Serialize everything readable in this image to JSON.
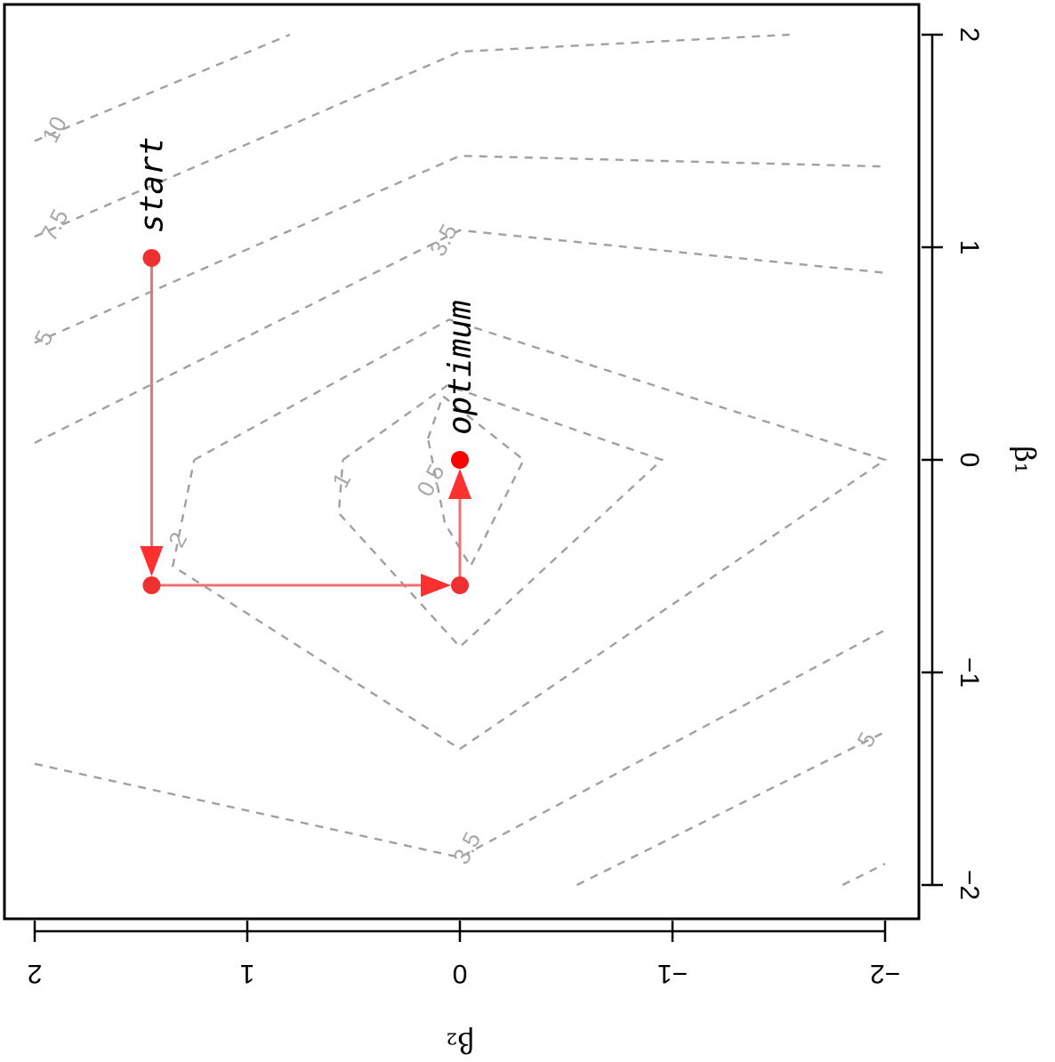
{
  "chart_data": {
    "type": "contour",
    "orientation": "rotated-90-clockwise",
    "xlabel": "β₂",
    "ylabel": "β₁",
    "xlim": [
      2,
      -2
    ],
    "ylim": [
      -2,
      2
    ],
    "x_ticks": [
      {
        "value": 2,
        "label": "2"
      },
      {
        "value": 1,
        "label": "1"
      },
      {
        "value": 0,
        "label": "0"
      },
      {
        "value": -1,
        "label": "−1"
      },
      {
        "value": -2,
        "label": "−2"
      }
    ],
    "y_ticks": [
      {
        "value": 2,
        "label": "2"
      },
      {
        "value": 1,
        "label": "1"
      },
      {
        "value": 0,
        "label": "0"
      },
      {
        "value": -1,
        "label": "−1"
      },
      {
        "value": -2,
        "label": "−2"
      }
    ],
    "grid": false,
    "contour_color": "#a0a0a0",
    "contours": [
      {
        "level": "0.5",
        "label": "0.5",
        "points": [
          [
            0.15,
            0.1
          ],
          [
            0.08,
            0.3
          ],
          [
            -0.3,
            0.0
          ],
          [
            -0.05,
            -0.5
          ],
          [
            0.07,
            -0.3
          ],
          [
            0.15,
            0.1
          ]
        ]
      },
      {
        "level": "1",
        "label": "1",
        "points": [
          [
            0.55,
            0.0
          ],
          [
            0.06,
            0.35
          ],
          [
            -0.95,
            0.0
          ],
          [
            0.0,
            -0.88
          ],
          [
            0.57,
            -0.25
          ],
          [
            0.55,
            0.0
          ]
        ]
      },
      {
        "level": "2",
        "label": "2",
        "points": [
          [
            1.25,
            0.0
          ],
          [
            0.05,
            0.66
          ],
          [
            -2.0,
            0.0
          ],
          [
            0.0,
            -1.36
          ],
          [
            1.35,
            -0.5
          ],
          [
            1.25,
            0.0
          ]
        ]
      },
      {
        "level": "3.5 (upper)",
        "label": "3.5",
        "points": [
          [
            2.0,
            0.08
          ],
          [
            0.0,
            1.08
          ],
          [
            -2.0,
            0.88
          ]
        ]
      },
      {
        "level": "3.5 (lower)",
        "label": "3.5",
        "points": [
          [
            2.0,
            -1.43
          ],
          [
            0.0,
            -1.87
          ],
          [
            -2.0,
            -0.8
          ]
        ]
      },
      {
        "level": "5 (upper)",
        "label": "5",
        "points": [
          [
            2.0,
            0.55
          ],
          [
            0.0,
            1.43
          ],
          [
            -2.0,
            1.38
          ]
        ]
      },
      {
        "level": "5 (lower)",
        "label": "5",
        "points": [
          [
            -0.55,
            -2.0
          ],
          [
            -2.0,
            -1.28
          ]
        ]
      },
      {
        "level": "7.5 (upper)",
        "label": "7.5",
        "points": [
          [
            2.0,
            1.05
          ],
          [
            0.0,
            1.92
          ],
          [
            -1.55,
            2.0
          ]
        ]
      },
      {
        "level": "7.5 (lower)",
        "label": "",
        "points": [
          [
            -1.8,
            -2.0
          ],
          [
            -2.0,
            -1.9
          ]
        ]
      },
      {
        "level": "10",
        "label": "10",
        "points": [
          [
            2.0,
            1.5
          ],
          [
            0.8,
            2.0
          ]
        ]
      }
    ],
    "contour_label_positions": [
      {
        "label": "0.5",
        "x": 0.13,
        "y": -0.1
      },
      {
        "label": "1",
        "x": 0.55,
        "y": -0.1
      },
      {
        "label": "2",
        "x": 1.32,
        "y": -0.38
      },
      {
        "label": "3.5",
        "x": 0.07,
        "y": 1.03
      },
      {
        "label": "3.5",
        "x": -0.04,
        "y": -1.83
      },
      {
        "label": "5",
        "x": 1.95,
        "y": 0.57
      },
      {
        "label": "5",
        "x": -1.92,
        "y": -1.32
      },
      {
        "label": "7.5",
        "x": 1.9,
        "y": 1.1
      },
      {
        "label": "10",
        "x": 1.9,
        "y": 1.55
      }
    ],
    "descent_path": {
      "color": "#ee3030",
      "points": [
        {
          "x": 1.45,
          "y": 0.95
        },
        {
          "x": 1.45,
          "y": -0.59
        },
        {
          "x": 0.0,
          "y": -0.59
        },
        {
          "x": 0.0,
          "y": 0.0
        }
      ]
    },
    "annotations": [
      {
        "text": "start",
        "x": 1.45,
        "y": 0.95
      },
      {
        "text": "optimum",
        "x": 0.0,
        "y": 0.0
      }
    ]
  }
}
